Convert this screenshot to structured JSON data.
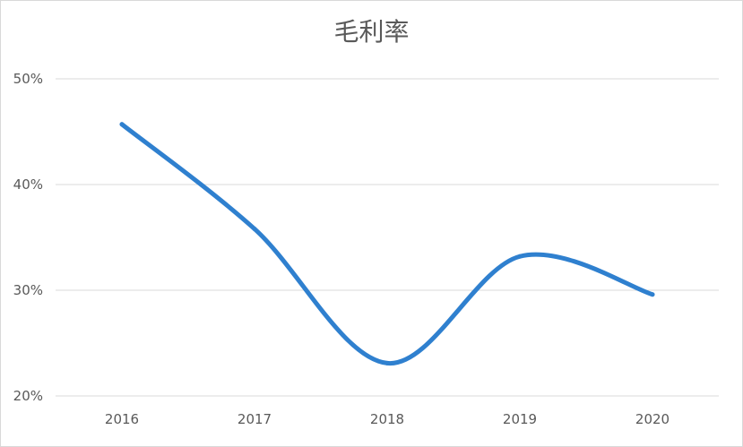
{
  "chart_data": {
    "type": "line",
    "title": "毛利率",
    "categories": [
      "2016",
      "2017",
      "2018",
      "2019",
      "2020"
    ],
    "series": [
      {
        "values": [
          45.7,
          35.8,
          23.1,
          33.2,
          29.6
        ]
      }
    ],
    "ylim": [
      20,
      50
    ],
    "yticks": [
      20,
      30,
      40,
      50
    ],
    "ytick_labels": [
      "20%",
      "30%",
      "40%",
      "50%"
    ],
    "grid": true,
    "smooth": true,
    "legend": "none",
    "line_color": "#2f80cf",
    "grid_color": "#d9d9d9",
    "text_color": "#595959"
  }
}
